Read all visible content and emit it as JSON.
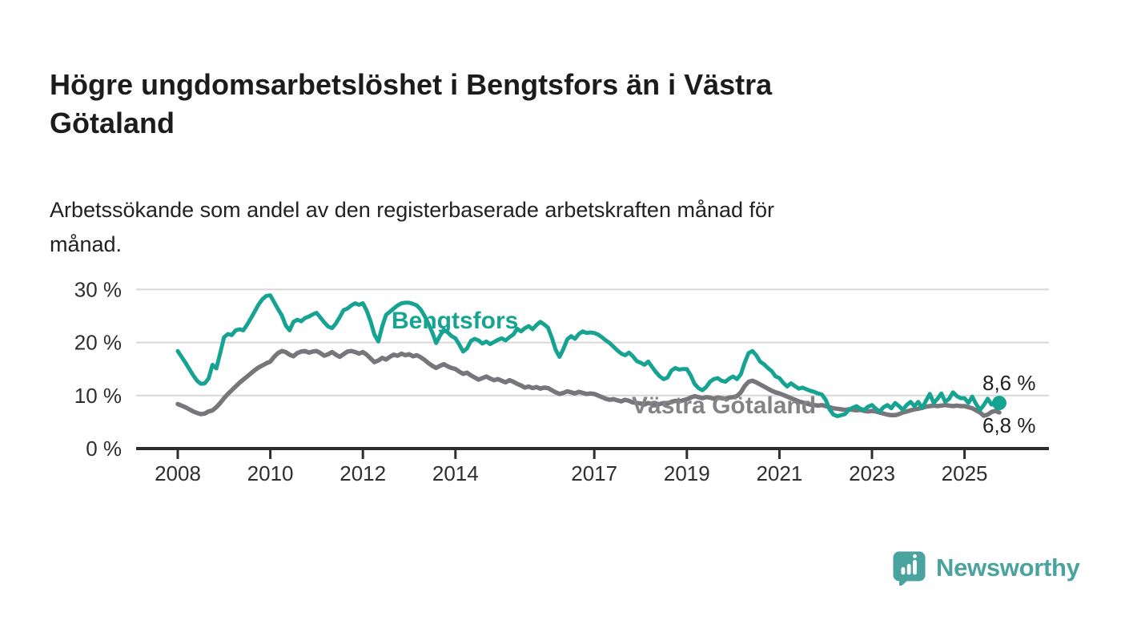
{
  "header": {
    "title": "Högre ungdomsarbetslöshet i Bengtsfors än i Västra\nGötaland",
    "subtitle": "Arbetssökande som andel av den registerbaserade arbetskraften månad för\nmånad."
  },
  "chart_data": {
    "type": "line",
    "title": "Högre ungdomsarbetslöshet i Bengtsfors än i Västra Götaland",
    "subtitle": "Arbetssökande som andel av den registerbaserade arbetskraften månad för månad.",
    "xlabel": "",
    "ylabel": "",
    "grid": true,
    "legend_position": "inline-labels",
    "grid_color": "#d8d8d8",
    "axis_color": "#2e2e2e",
    "ylim": [
      0,
      33
    ],
    "x_start_year": 2008,
    "points_per_month": 1,
    "x_end_year_approx": 2025.75,
    "y_ticks": [
      {
        "value": 0,
        "label": "0 %"
      },
      {
        "value": 10,
        "label": "10 %"
      },
      {
        "value": 20,
        "label": "20 %"
      },
      {
        "value": 30,
        "label": "30 %"
      }
    ],
    "x_ticks": [
      {
        "year": 2008,
        "label": "2008"
      },
      {
        "year": 2010,
        "label": "2010"
      },
      {
        "year": 2012,
        "label": "2012"
      },
      {
        "year": 2014,
        "label": "2014"
      },
      {
        "year": 2017,
        "label": "2017"
      },
      {
        "year": 2019,
        "label": "2019"
      },
      {
        "year": 2021,
        "label": "2021"
      },
      {
        "year": 2023,
        "label": "2023"
      },
      {
        "year": 2025,
        "label": "2025"
      }
    ],
    "end_labels": [
      "8,6 %",
      "6,8 %"
    ],
    "latest_values": {
      "Bengtsfors": "8,6 %",
      "Västra Götaland": "6,8 %"
    },
    "series": [
      {
        "name": "Bengtsfors",
        "color": "#17a392",
        "label_color": "#17a392",
        "stroke_width": 5,
        "end_dot": true,
        "values": [
          18.4,
          17.3,
          16.2,
          15.0,
          13.8,
          12.8,
          12.2,
          12.3,
          13.2,
          15.8,
          15.1,
          18.0,
          21.0,
          21.6,
          21.4,
          22.3,
          22.5,
          22.3,
          23.4,
          24.6,
          25.9,
          27.2,
          28.2,
          28.8,
          28.9,
          27.6,
          26.3,
          25.1,
          23.2,
          22.3,
          23.9,
          24.3,
          24.0,
          24.6,
          24.9,
          25.3,
          25.6,
          24.7,
          23.8,
          23.0,
          22.7,
          23.6,
          24.8,
          26.1,
          26.4,
          27.0,
          27.4,
          27.1,
          27.4,
          26.0,
          24.0,
          21.5,
          20.2,
          23.0,
          25.2,
          25.8,
          26.4,
          27.0,
          27.4,
          27.5,
          27.5,
          27.3,
          27.0,
          26.2,
          25.0,
          23.5,
          21.9,
          19.9,
          21.3,
          22.4,
          21.9,
          21.2,
          20.8,
          19.6,
          18.3,
          18.9,
          20.3,
          20.7,
          20.4,
          19.8,
          20.2,
          19.7,
          20.1,
          20.5,
          20.8,
          20.4,
          21.0,
          21.5,
          22.6,
          22.1,
          22.7,
          23.1,
          22.5,
          23.3,
          23.9,
          23.4,
          22.8,
          20.9,
          18.6,
          17.3,
          18.8,
          20.6,
          21.2,
          20.7,
          21.6,
          22.1,
          21.8,
          21.9,
          21.8,
          21.5,
          21.0,
          20.4,
          19.9,
          19.2,
          18.5,
          17.9,
          17.6,
          18.1,
          17.4,
          16.5,
          16.2,
          15.8,
          16.4,
          15.4,
          14.4,
          13.6,
          13.1,
          13.4,
          14.7,
          15.2,
          14.9,
          15.0,
          15.0,
          13.8,
          12.2,
          11.4,
          11.0,
          11.6,
          12.6,
          13.1,
          13.3,
          12.8,
          12.6,
          13.2,
          13.6,
          13.1,
          14.0,
          16.2,
          18.0,
          18.4,
          17.6,
          16.4,
          15.9,
          15.2,
          14.6,
          13.6,
          13.3,
          12.4,
          11.7,
          12.3,
          11.8,
          11.3,
          11.5,
          11.2,
          10.9,
          10.7,
          10.4,
          10.2,
          9.2,
          7.4,
          6.4,
          6.1,
          6.3,
          6.5,
          7.3,
          7.7,
          8.0,
          7.5,
          7.3,
          7.9,
          8.2,
          7.5,
          7.0,
          7.8,
          8.2,
          7.6,
          8.6,
          8.0,
          7.3,
          8.2,
          8.8,
          8.0,
          8.8,
          7.6,
          9.0,
          10.3,
          8.6,
          9.4,
          10.4,
          8.8,
          9.4,
          10.6,
          9.9,
          9.5,
          9.5,
          8.6,
          9.8,
          8.4,
          7.3,
          8.2,
          9.4,
          8.3,
          8.9,
          8.6
        ]
      },
      {
        "name": "Västra Götaland",
        "color": "#77777b",
        "label_color": "#828287",
        "stroke_width": 5.5,
        "end_dot": false,
        "values": [
          8.4,
          8.1,
          7.8,
          7.4,
          7.0,
          6.7,
          6.5,
          6.6,
          7.0,
          7.2,
          7.8,
          8.6,
          9.5,
          10.3,
          11.0,
          11.7,
          12.4,
          13.0,
          13.6,
          14.2,
          14.8,
          15.3,
          15.7,
          16.1,
          16.4,
          17.3,
          18.0,
          18.4,
          18.2,
          17.7,
          17.4,
          18.0,
          18.3,
          18.4,
          18.1,
          18.3,
          18.4,
          18.0,
          17.5,
          17.8,
          18.2,
          17.7,
          17.3,
          17.8,
          18.3,
          18.4,
          18.2,
          17.9,
          18.2,
          17.7,
          17.0,
          16.3,
          16.6,
          17.1,
          16.8,
          17.3,
          17.7,
          17.5,
          17.9,
          17.6,
          17.8,
          17.4,
          17.6,
          17.2,
          16.7,
          16.1,
          15.6,
          15.2,
          15.6,
          15.9,
          15.5,
          15.2,
          15.0,
          14.5,
          14.1,
          14.3,
          13.8,
          13.4,
          13.0,
          13.3,
          13.6,
          13.2,
          12.9,
          13.1,
          12.8,
          12.5,
          12.9,
          12.6,
          12.2,
          11.9,
          11.5,
          11.7,
          11.4,
          11.6,
          11.3,
          11.5,
          11.4,
          11.0,
          10.6,
          10.3,
          10.5,
          10.8,
          10.6,
          10.4,
          10.7,
          10.5,
          10.3,
          10.4,
          10.3,
          10.0,
          9.7,
          9.4,
          9.2,
          9.3,
          9.1,
          8.9,
          9.2,
          9.0,
          8.7,
          8.6,
          8.5,
          8.3,
          8.6,
          8.4,
          8.2,
          8.4,
          8.6,
          8.5,
          8.8,
          9.0,
          8.9,
          9.1,
          9.3,
          9.6,
          9.9,
          9.7,
          9.5,
          9.7,
          9.6,
          9.4,
          9.6,
          9.5,
          9.4,
          9.6,
          9.7,
          9.9,
          10.6,
          11.8,
          12.6,
          12.8,
          12.5,
          12.1,
          11.7,
          11.3,
          10.9,
          10.6,
          10.4,
          10.1,
          9.8,
          9.5,
          9.2,
          8.9,
          8.7,
          8.5,
          8.3,
          8.2,
          8.1,
          8.2,
          8.0,
          7.8,
          7.6,
          7.5,
          7.4,
          7.3,
          7.4,
          7.3,
          7.2,
          7.3,
          7.1,
          7.0,
          7.1,
          7.0,
          6.8,
          6.6,
          6.4,
          6.3,
          6.3,
          6.5,
          6.8,
          7.0,
          7.2,
          7.4,
          7.5,
          7.7,
          7.9,
          8.0,
          8.1,
          8.0,
          8.1,
          8.2,
          8.1,
          8.0,
          8.1,
          8.0,
          8.0,
          7.8,
          7.6,
          7.2,
          6.8,
          6.2,
          6.4,
          6.9,
          7.1,
          6.8
        ]
      }
    ]
  },
  "footer": {
    "brand": "Newsworthy",
    "brand_color": "#4aa39e"
  }
}
